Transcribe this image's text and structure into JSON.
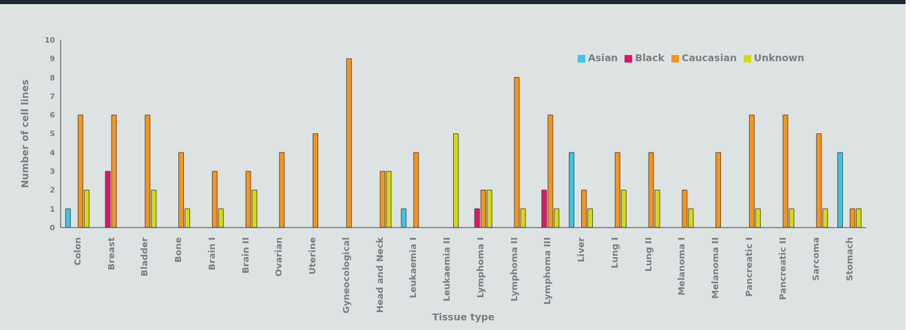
{
  "chart_data": {
    "type": "bar",
    "xlabel": "Tissue type",
    "ylabel": "Number of cell lines",
    "categories": [
      "Colon",
      "Breast",
      "Bladder",
      "Bone",
      "Brain I",
      "Brain II",
      "Ovarian",
      "Uterine",
      "Gyneocological",
      "Head and Neck",
      "Leukaemia I",
      "Leukaemia II",
      "Lymphoma I",
      "Lymphoma II",
      "Lymphoma III",
      "Liver",
      "Lung I",
      "Lung II",
      "Melanoma I",
      "Melanoma II",
      "Pancreatic I",
      "Pancreatic II",
      "Sarcoma",
      "Stomach"
    ],
    "series": [
      {
        "name": "Asian",
        "color": "#3ec6e8",
        "values": [
          1,
          null,
          null,
          null,
          null,
          null,
          null,
          null,
          null,
          null,
          1,
          null,
          null,
          null,
          null,
          4,
          null,
          null,
          null,
          null,
          null,
          null,
          null,
          4
        ]
      },
      {
        "name": "Black",
        "color": "#e0166a",
        "values": [
          null,
          3,
          null,
          null,
          null,
          null,
          null,
          null,
          null,
          null,
          null,
          null,
          1,
          null,
          2,
          null,
          null,
          null,
          null,
          null,
          null,
          null,
          null,
          null
        ]
      },
      {
        "name": "Caucasian",
        "color": "#f7941d",
        "values": [
          6,
          6,
          6,
          4,
          3,
          3,
          4,
          5,
          9,
          3,
          4,
          null,
          2,
          8,
          6,
          2,
          4,
          4,
          2,
          4,
          6,
          6,
          5,
          1
        ]
      },
      {
        "name": "Unknown",
        "color": "#d6d916",
        "values": [
          2,
          null,
          2,
          1,
          1,
          2,
          null,
          null,
          null,
          3,
          null,
          5,
          2,
          1,
          1,
          1,
          2,
          2,
          1,
          null,
          1,
          1,
          1,
          1
        ]
      }
    ],
    "ylim": [
      0,
      10
    ],
    "yticks": [
      0,
      1,
      2,
      3,
      4,
      5,
      6,
      7,
      8,
      9,
      10
    ],
    "grid": false,
    "legend": "top right"
  }
}
